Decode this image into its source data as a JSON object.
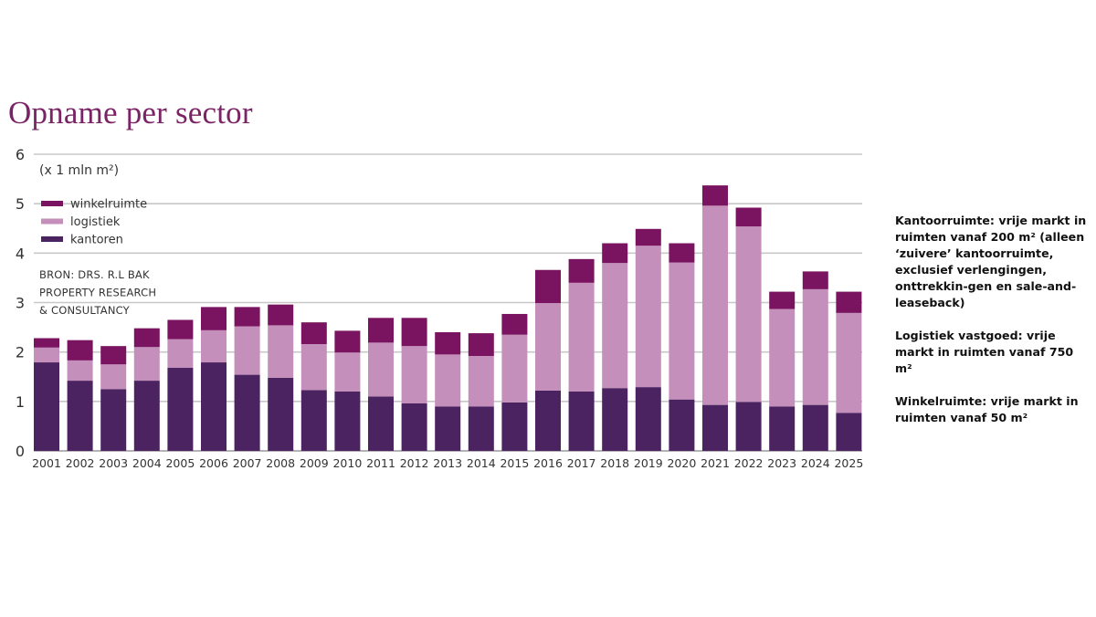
{
  "chart_data": {
    "type": "bar",
    "stacked": true,
    "title": "Opname per sector",
    "unit_label": "(x 1 mln m²)",
    "xlabel": "",
    "ylabel": "",
    "ylim": [
      0,
      6
    ],
    "yticks": [
      0,
      1,
      2,
      3,
      4,
      5,
      6
    ],
    "grid": true,
    "legend_position": "top-left",
    "categories": [
      "2001",
      "2002",
      "2003",
      "2004",
      "2005",
      "2006",
      "2007",
      "2008",
      "2009",
      "2010",
      "2011",
      "2012",
      "2013",
      "2014",
      "2015",
      "2016",
      "2017",
      "2018",
      "2019",
      "2020",
      "2021",
      "2022",
      "2023",
      "2024",
      "2025"
    ],
    "series": [
      {
        "name": "kantoren",
        "color": "#4a2360",
        "values": [
          1.79,
          1.42,
          1.25,
          1.42,
          1.68,
          1.79,
          1.54,
          1.48,
          1.23,
          1.2,
          1.1,
          0.96,
          0.9,
          0.9,
          0.98,
          1.22,
          1.2,
          1.27,
          1.29,
          1.04,
          0.93,
          0.99,
          0.9,
          0.93,
          0.77
        ]
      },
      {
        "name": "logistiek",
        "color": "#c48fba",
        "values": [
          0.3,
          0.41,
          0.5,
          0.68,
          0.58,
          0.65,
          0.98,
          1.06,
          0.93,
          0.79,
          1.09,
          1.16,
          1.05,
          1.02,
          1.37,
          1.77,
          2.2,
          2.53,
          2.86,
          2.77,
          4.03,
          3.55,
          1.97,
          2.34,
          2.02
        ]
      },
      {
        "name": "winkelruimte",
        "color": "#7a1460",
        "values": [
          0.19,
          0.41,
          0.37,
          0.38,
          0.39,
          0.47,
          0.39,
          0.42,
          0.44,
          0.44,
          0.5,
          0.57,
          0.45,
          0.46,
          0.42,
          0.67,
          0.48,
          0.4,
          0.34,
          0.39,
          0.41,
          0.38,
          0.35,
          0.36,
          0.43
        ]
      }
    ],
    "legend": [
      "winkelruimte",
      "logistiek",
      "kantoren"
    ],
    "source": [
      "BRON: DRS. R.L BAK",
      "PROPERTY RESEARCH",
      "& CONSULTANCY"
    ]
  },
  "notes": [
    "Kantoorruimte: vrije markt in ruimten vanaf 200 m² (alleen ‘zuivere’ kantoorruimte, exclusief verlengingen, onttrekkin-gen en sale-and-leaseback)",
    "Logistiek vastgoed: vrije markt in ruimten vanaf 750 m²",
    "Winkelruimte: vrije markt in ruimten vanaf 50 m²"
  ]
}
